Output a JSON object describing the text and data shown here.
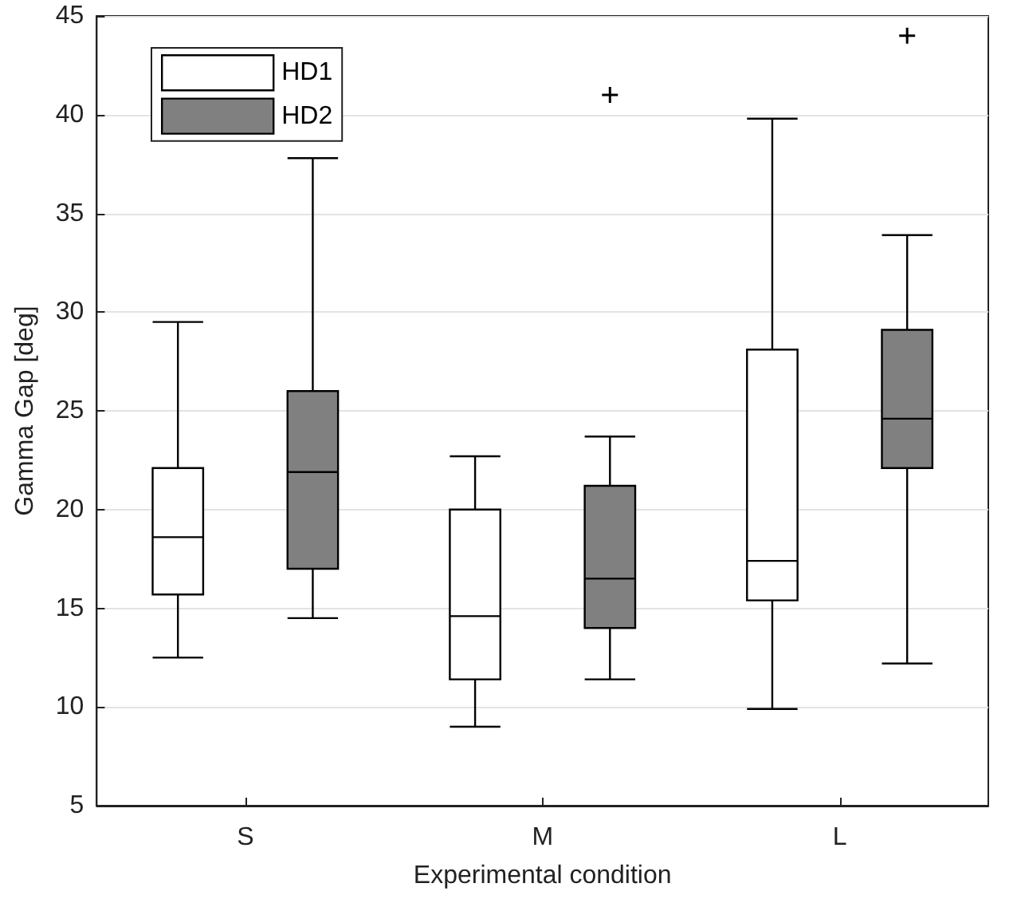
{
  "chart_data": {
    "type": "box",
    "xlabel": "Experimental condition",
    "ylabel": "Gamma Gap [deg]",
    "categories": [
      "S",
      "M",
      "L"
    ],
    "ylim": [
      5,
      45
    ],
    "yticks": [
      5,
      10,
      15,
      20,
      25,
      30,
      35,
      40,
      45
    ],
    "grid": "y",
    "legend": "top left",
    "marker": "cross",
    "series": [
      {
        "name": "HD1",
        "color": "#ffffff",
        "boxes": [
          {
            "low": 12.5,
            "q1": 15.7,
            "median": 18.6,
            "q3": 22.1,
            "high": 29.5
          },
          {
            "low": 9.0,
            "q1": 11.4,
            "median": 14.6,
            "q3": 20.0,
            "high": 22.7
          },
          {
            "low": 9.9,
            "q1": 15.4,
            "median": 17.4,
            "q3": 28.1,
            "high": 39.8
          }
        ]
      },
      {
        "name": "HD2",
        "color": "#808080",
        "boxes": [
          {
            "low": 14.5,
            "q1": 17.0,
            "median": 21.9,
            "q3": 26.0,
            "high": 37.8
          },
          {
            "low": 11.4,
            "q1": 14.0,
            "median": 16.5,
            "q3": 21.2,
            "high": 23.7,
            "outliers": [
              41.0
            ]
          },
          {
            "low": 12.2,
            "q1": 22.1,
            "median": 24.6,
            "q3": 29.1,
            "high": 33.9,
            "outliers": [
              44.0
            ]
          }
        ]
      }
    ]
  }
}
